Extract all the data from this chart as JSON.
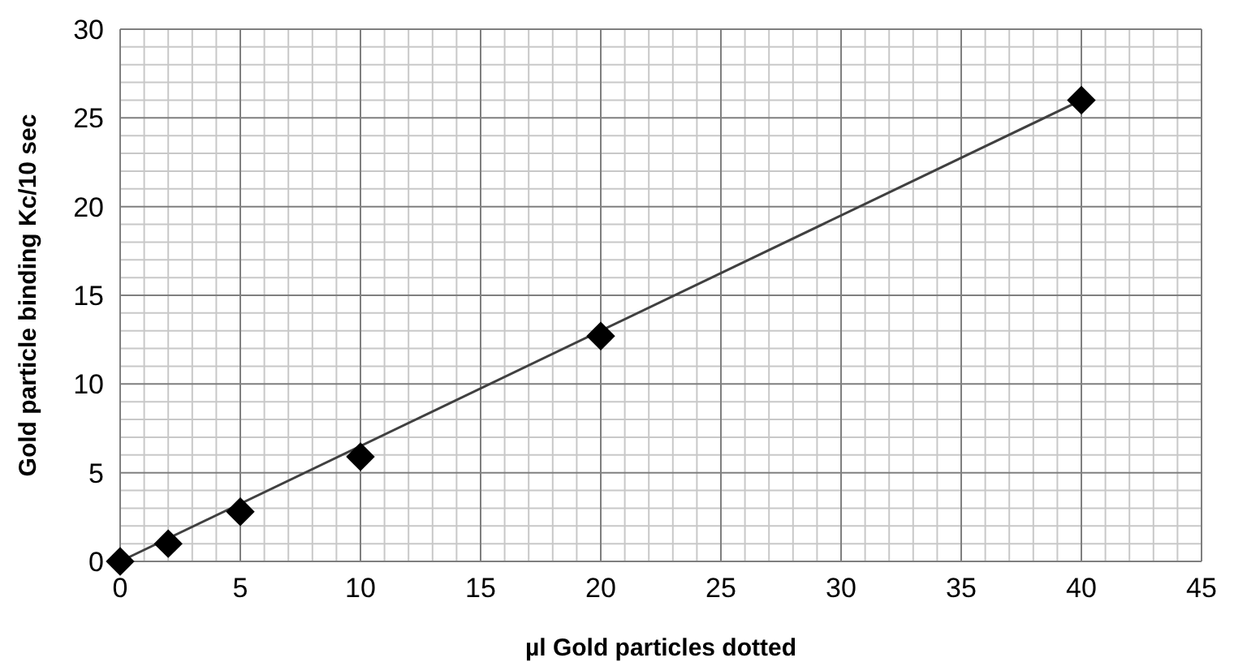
{
  "chart_data": {
    "type": "scatter",
    "xlabel": "µl Gold particles dotted",
    "ylabel": "Gold particle binding Kc/10 sec",
    "xlim": [
      0,
      45
    ],
    "xticks": [
      0,
      5,
      10,
      15,
      20,
      25,
      30,
      35,
      40,
      45
    ],
    "ylim": [
      0,
      30
    ],
    "yticks": [
      0,
      5,
      10,
      15,
      20,
      25,
      30
    ],
    "grid": true,
    "series": [
      {
        "color": "#000000",
        "marker": "diamond",
        "x": [
          0,
          2,
          5,
          10,
          20,
          40
        ],
        "values": [
          0,
          1.0,
          2.8,
          5.9,
          12.7,
          26
        ]
      },
      {
        "type": "line",
        "color": "#404040",
        "marker": "none",
        "line_style": "solid",
        "x": [
          0,
          40
        ],
        "values": [
          0,
          26
        ]
      }
    ]
  }
}
